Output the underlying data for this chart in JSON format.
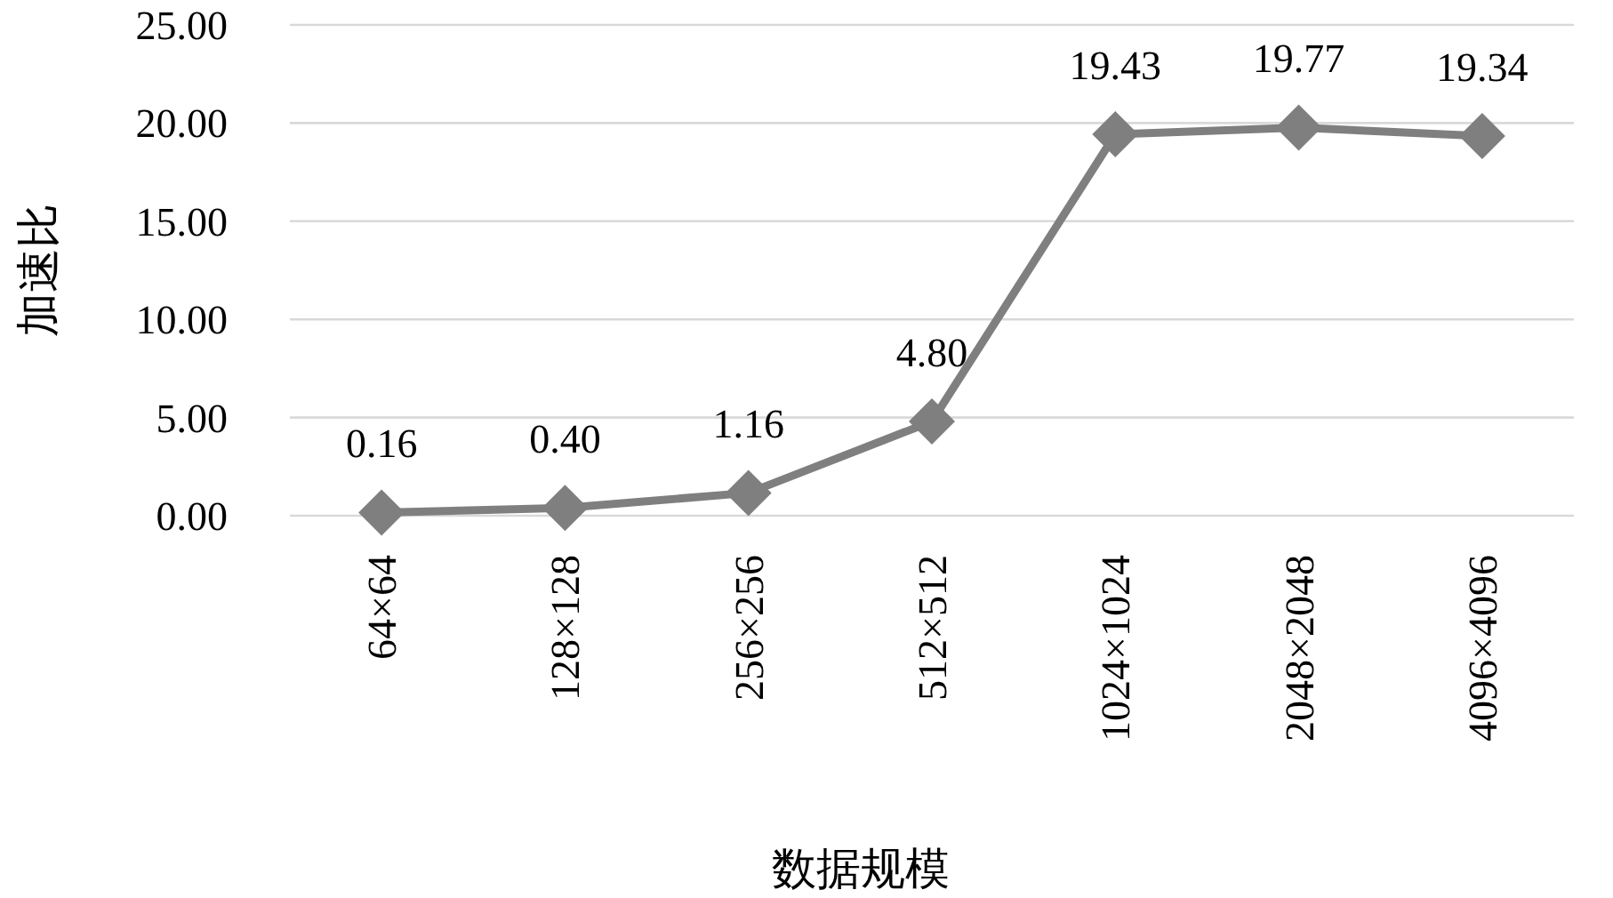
{
  "chart_data": {
    "type": "line",
    "xlabel": "数据规模",
    "ylabel": "加速比",
    "categories": [
      "64×64",
      "128×128",
      "256×256",
      "512×512",
      "1024×1024",
      "2048×2048",
      "4096×4096"
    ],
    "series": [
      {
        "color": "#7f7f7f",
        "values": [
          0.16,
          0.4,
          1.16,
          4.8,
          19.43,
          19.77,
          19.34
        ],
        "value_labels": [
          "0.16",
          "0.40",
          "1.16",
          "4.80",
          "19.43",
          "19.77",
          "19.34"
        ]
      }
    ],
    "ylim": [
      0,
      25
    ],
    "yticks": [
      {
        "value": 0,
        "label": "0.00"
      },
      {
        "value": 5,
        "label": "5.00"
      },
      {
        "value": 10,
        "label": "10.00"
      },
      {
        "value": 15,
        "label": "15.00"
      },
      {
        "value": 20,
        "label": "20.00"
      },
      {
        "value": 25,
        "label": "25.00"
      }
    ],
    "grid": "y",
    "marker": "diamond",
    "line_style": "solid"
  }
}
